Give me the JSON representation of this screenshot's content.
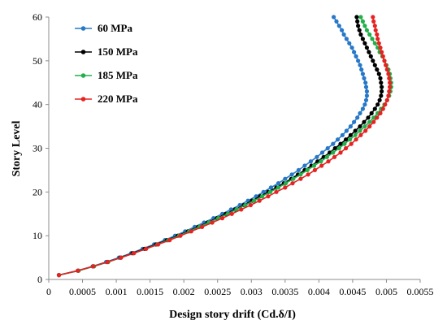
{
  "chart_data": {
    "type": "line",
    "title": "",
    "xlabel": "Design story drift (Cd.δ/I)",
    "ylabel": "Story Level",
    "xlim": [
      0,
      0.0055
    ],
    "ylim": [
      0,
      60
    ],
    "xticks": [
      "0",
      "0.0005",
      "0.001",
      "0.0015",
      "0.002",
      "0.0025",
      "0.003",
      "0.0035",
      "0.004",
      "0.0045",
      "0.005",
      "0.0055"
    ],
    "yticks": [
      "0",
      "10",
      "20",
      "30",
      "40",
      "50",
      "60"
    ],
    "grid": false,
    "legend_position": "top-left",
    "y": [
      1,
      2,
      3,
      4,
      5,
      6,
      7,
      8,
      9,
      10,
      11,
      12,
      13,
      14,
      15,
      16,
      17,
      18,
      19,
      20,
      21,
      22,
      23,
      24,
      25,
      26,
      27,
      28,
      29,
      30,
      31,
      32,
      33,
      34,
      35,
      36,
      37,
      38,
      39,
      40,
      41,
      42,
      43,
      44,
      45,
      46,
      47,
      48,
      49,
      50,
      51,
      52,
      53,
      54,
      55,
      56,
      57,
      58,
      59,
      60
    ],
    "series": [
      {
        "name": "60 MPa",
        "color": "#2878c8",
        "x": [
          0.00015,
          0.00043,
          0.00065,
          0.00085,
          0.00104,
          0.00122,
          0.00139,
          0.00156,
          0.00172,
          0.00187,
          0.00202,
          0.00216,
          0.0023,
          0.00244,
          0.00257,
          0.0027,
          0.00283,
          0.00295,
          0.00307,
          0.00318,
          0.00329,
          0.0034,
          0.0035,
          0.0036,
          0.0037,
          0.00379,
          0.00388,
          0.00397,
          0.00405,
          0.00413,
          0.00421,
          0.00428,
          0.00435,
          0.00441,
          0.00447,
          0.00452,
          0.00457,
          0.00461,
          0.00465,
          0.00468,
          0.0047,
          0.00471,
          0.00471,
          0.0047,
          0.00469,
          0.00467,
          0.00465,
          0.00463,
          0.00461,
          0.00458,
          0.00455,
          0.00452,
          0.00449,
          0.00445,
          0.00441,
          0.00437,
          0.00434,
          0.0043,
          0.00426,
          0.00422
        ]
      },
      {
        "name": "150 MPa",
        "color": "#000000",
        "x": [
          0.00015,
          0.00044,
          0.00066,
          0.00087,
          0.00106,
          0.00124,
          0.00142,
          0.00159,
          0.00175,
          0.00191,
          0.00206,
          0.00221,
          0.00235,
          0.00249,
          0.00262,
          0.00276,
          0.00289,
          0.00301,
          0.00313,
          0.00325,
          0.00337,
          0.00348,
          0.00359,
          0.00369,
          0.00379,
          0.00389,
          0.00398,
          0.00407,
          0.00416,
          0.00424,
          0.00432,
          0.0044,
          0.00447,
          0.00454,
          0.00461,
          0.00467,
          0.00473,
          0.00478,
          0.00483,
          0.00487,
          0.0049,
          0.00492,
          0.00493,
          0.00493,
          0.00492,
          0.00491,
          0.00489,
          0.00486,
          0.00483,
          0.0048,
          0.00477,
          0.00474,
          0.00471,
          0.00468,
          0.00465,
          0.00462,
          0.0046,
          0.00458,
          0.00457,
          0.00456
        ]
      },
      {
        "name": "185 MPa",
        "color": "#22b04b",
        "x": [
          0.00015,
          0.00044,
          0.00067,
          0.00088,
          0.00107,
          0.00126,
          0.00144,
          0.00161,
          0.00177,
          0.00193,
          0.00208,
          0.00223,
          0.00237,
          0.00251,
          0.00265,
          0.00278,
          0.00291,
          0.00304,
          0.00316,
          0.00328,
          0.0034,
          0.00351,
          0.00362,
          0.00373,
          0.00383,
          0.00393,
          0.00403,
          0.00412,
          0.00421,
          0.0043,
          0.00438,
          0.00446,
          0.00454,
          0.00461,
          0.00468,
          0.00475,
          0.00481,
          0.00487,
          0.00492,
          0.00497,
          0.00501,
          0.00504,
          0.00506,
          0.00507,
          0.00507,
          0.00506,
          0.00505,
          0.00503,
          0.005,
          0.00497,
          0.00494,
          0.0049,
          0.00487,
          0.00483,
          0.00479,
          0.00475,
          0.00471,
          0.00468,
          0.00465,
          0.00462
        ]
      },
      {
        "name": "220 MPa",
        "color": "#e52322",
        "x": [
          0.00015,
          0.00043,
          0.00066,
          0.00087,
          0.00107,
          0.00126,
          0.00144,
          0.00162,
          0.00179,
          0.00195,
          0.00211,
          0.00227,
          0.00242,
          0.00257,
          0.00271,
          0.00285,
          0.00299,
          0.00312,
          0.00325,
          0.00337,
          0.0035,
          0.00361,
          0.00373,
          0.00384,
          0.00394,
          0.00404,
          0.00414,
          0.00423,
          0.00432,
          0.0044,
          0.00448,
          0.00455,
          0.00462,
          0.00469,
          0.00475,
          0.00481,
          0.00486,
          0.00491,
          0.00495,
          0.00498,
          0.00501,
          0.00503,
          0.00504,
          0.00505,
          0.00505,
          0.00504,
          0.00503,
          0.00501,
          0.00499,
          0.00497,
          0.00495,
          0.00493,
          0.00491,
          0.00489,
          0.00487,
          0.00486,
          0.00484,
          0.00483,
          0.00481,
          0.0048
        ]
      }
    ]
  }
}
